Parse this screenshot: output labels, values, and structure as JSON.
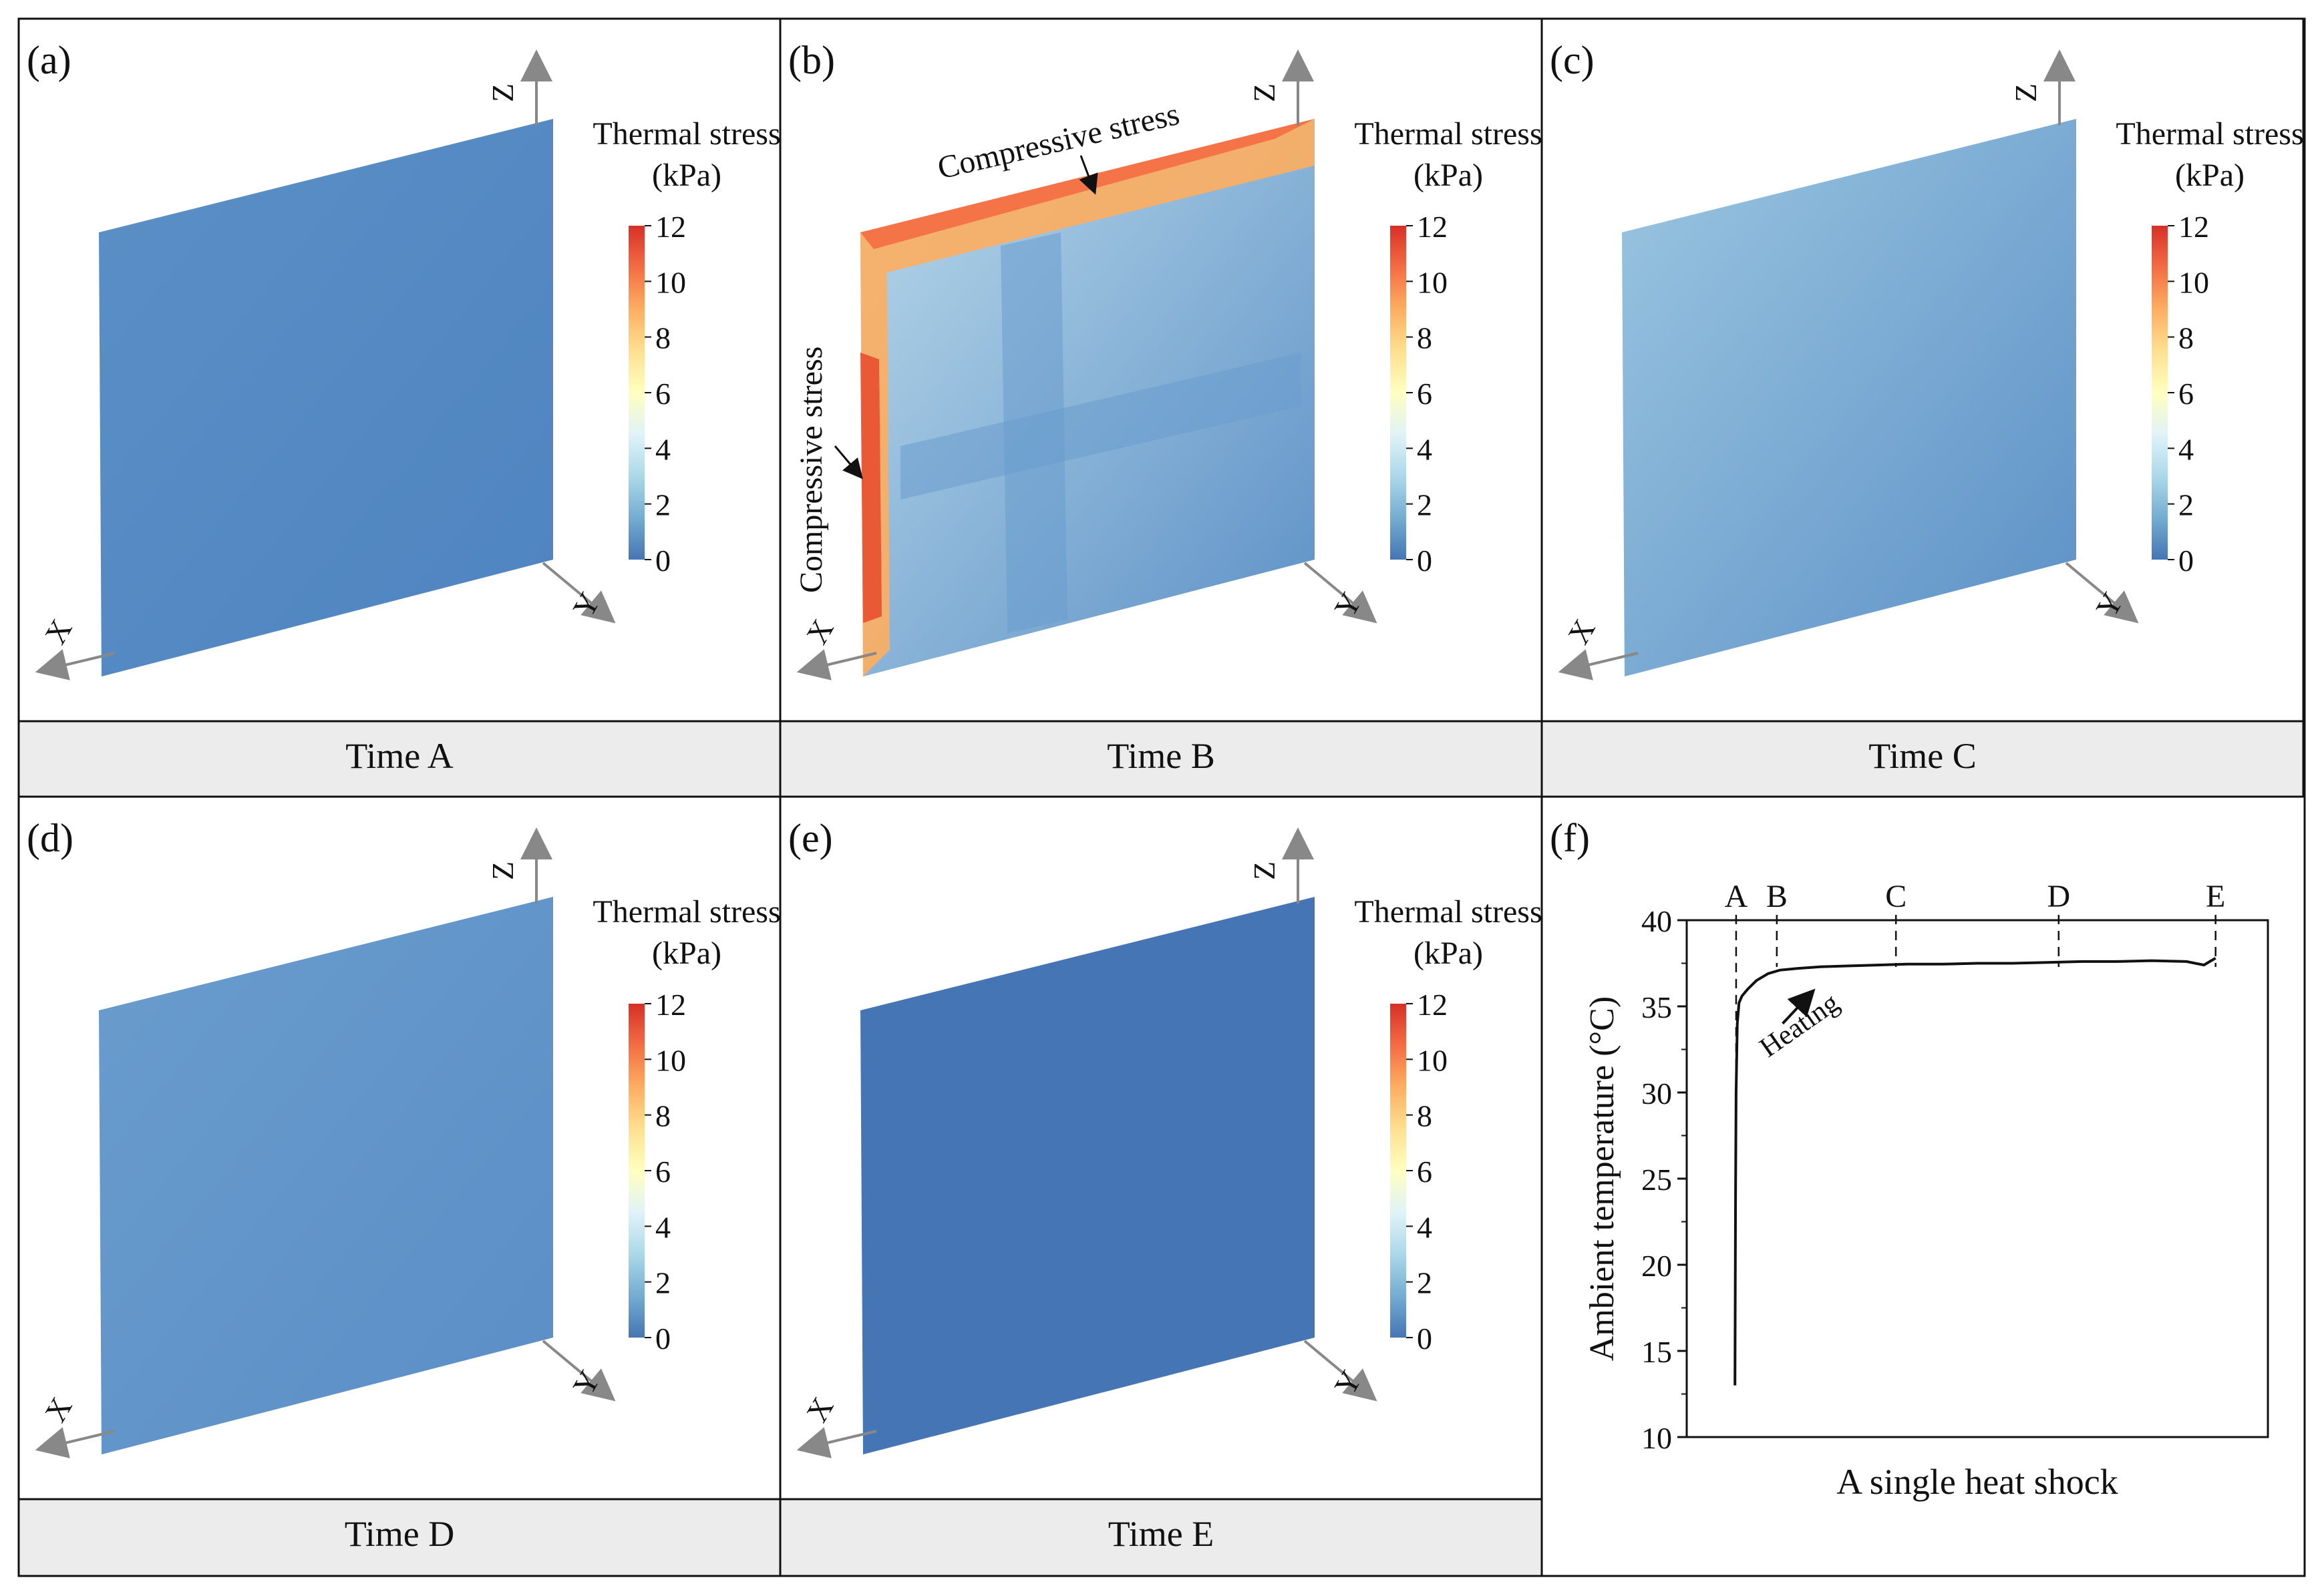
{
  "colorbar": {
    "title_line1": "Thermal stress",
    "title_line2": "(kPa)",
    "ticks": [
      "12",
      "10",
      "8",
      "6",
      "4",
      "2",
      "0"
    ],
    "colors": [
      "#d73027",
      "#f46d43",
      "#fdae61",
      "#fee090",
      "#ffffbf",
      "#e0f3f8",
      "#abd9e9",
      "#74add1",
      "#4575b4"
    ]
  },
  "axes_labels": {
    "x": "X",
    "y": "Y",
    "z": "Z"
  },
  "panels": [
    {
      "letter": "(a)",
      "caption": "Time A",
      "fill": "#5b8fc6",
      "fill2": "#4e84c0"
    },
    {
      "letter": "(b)",
      "caption": "Time B",
      "fill": "#b9d9ea",
      "fill2": "#5b8fc6",
      "annotations": [
        "Compressive stress",
        "Compressive stress"
      ]
    },
    {
      "letter": "(c)",
      "caption": "Time C",
      "fill": "#9cc7e1",
      "fill2": "#5b8fc6"
    },
    {
      "letter": "(d)",
      "caption": "Time D",
      "fill": "#6a9ccd",
      "fill2": "#5a8ec6"
    },
    {
      "letter": "(e)",
      "caption": "Time E",
      "fill": "#4575b4",
      "fill2": "#4575b4"
    }
  ],
  "chart_panel": {
    "letter": "(f)",
    "caption": "A single heat shock"
  },
  "chart_data": {
    "type": "line",
    "title": "A single heat shock",
    "xlabel": "",
    "ylabel": "Ambient temperature (°C)",
    "ylim": [
      10,
      40
    ],
    "yticks": [
      "10",
      "15",
      "20",
      "25",
      "30",
      "35",
      "40"
    ],
    "xlim": [
      0,
      100
    ],
    "markers": [
      {
        "label": "A",
        "x": 8.5
      },
      {
        "label": "B",
        "x": 15.5
      },
      {
        "label": "C",
        "x": 36
      },
      {
        "label": "D",
        "x": 64
      },
      {
        "label": "E",
        "x": 91
      }
    ],
    "annotation": "Heating",
    "series": [
      {
        "name": "Ambient temperature",
        "x": [
          8.3,
          8.35,
          8.4,
          8.5,
          8.7,
          9.0,
          9.5,
          10.5,
          12,
          14,
          16,
          19,
          23,
          28,
          33,
          38,
          44,
          50,
          56,
          62,
          68,
          74,
          80,
          86,
          89,
          90,
          91
        ],
        "y": [
          13.0,
          18.0,
          24.0,
          30.0,
          34.0,
          35.2,
          35.6,
          36.0,
          36.5,
          36.9,
          37.1,
          37.2,
          37.3,
          37.35,
          37.4,
          37.45,
          37.45,
          37.5,
          37.5,
          37.55,
          37.6,
          37.6,
          37.65,
          37.6,
          37.4,
          37.6,
          37.8
        ]
      }
    ]
  }
}
